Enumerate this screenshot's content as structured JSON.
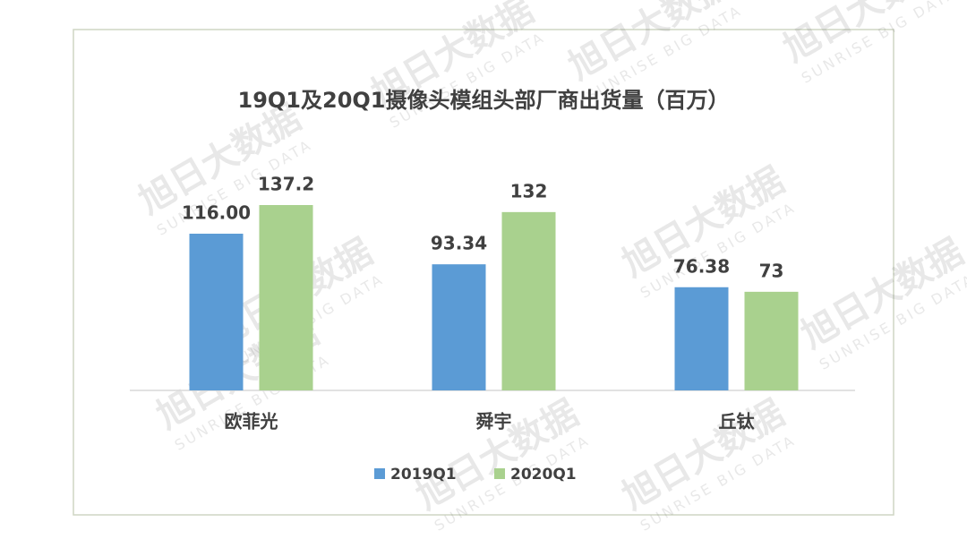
{
  "chart_data": {
    "type": "bar",
    "title": "19Q1及20Q1摄像头模组头部厂商出货量（百万）",
    "categories": [
      "欧菲光",
      "舜宇",
      "丘钛"
    ],
    "series": [
      {
        "name": "2019Q1",
        "color": "#5b9bd5",
        "values": [
          116,
          93.34,
          76.38
        ],
        "value_labels": [
          "116.00",
          "93.34",
          "76.38"
        ]
      },
      {
        "name": "2020Q1",
        "color": "#a9d18e",
        "values": [
          137.2,
          132,
          73
        ]
      }
    ],
    "legend": "bottom",
    "watermark": {
      "brand": "旭日大数据",
      "tagline": "SUNRISE BIG DATA"
    }
  }
}
